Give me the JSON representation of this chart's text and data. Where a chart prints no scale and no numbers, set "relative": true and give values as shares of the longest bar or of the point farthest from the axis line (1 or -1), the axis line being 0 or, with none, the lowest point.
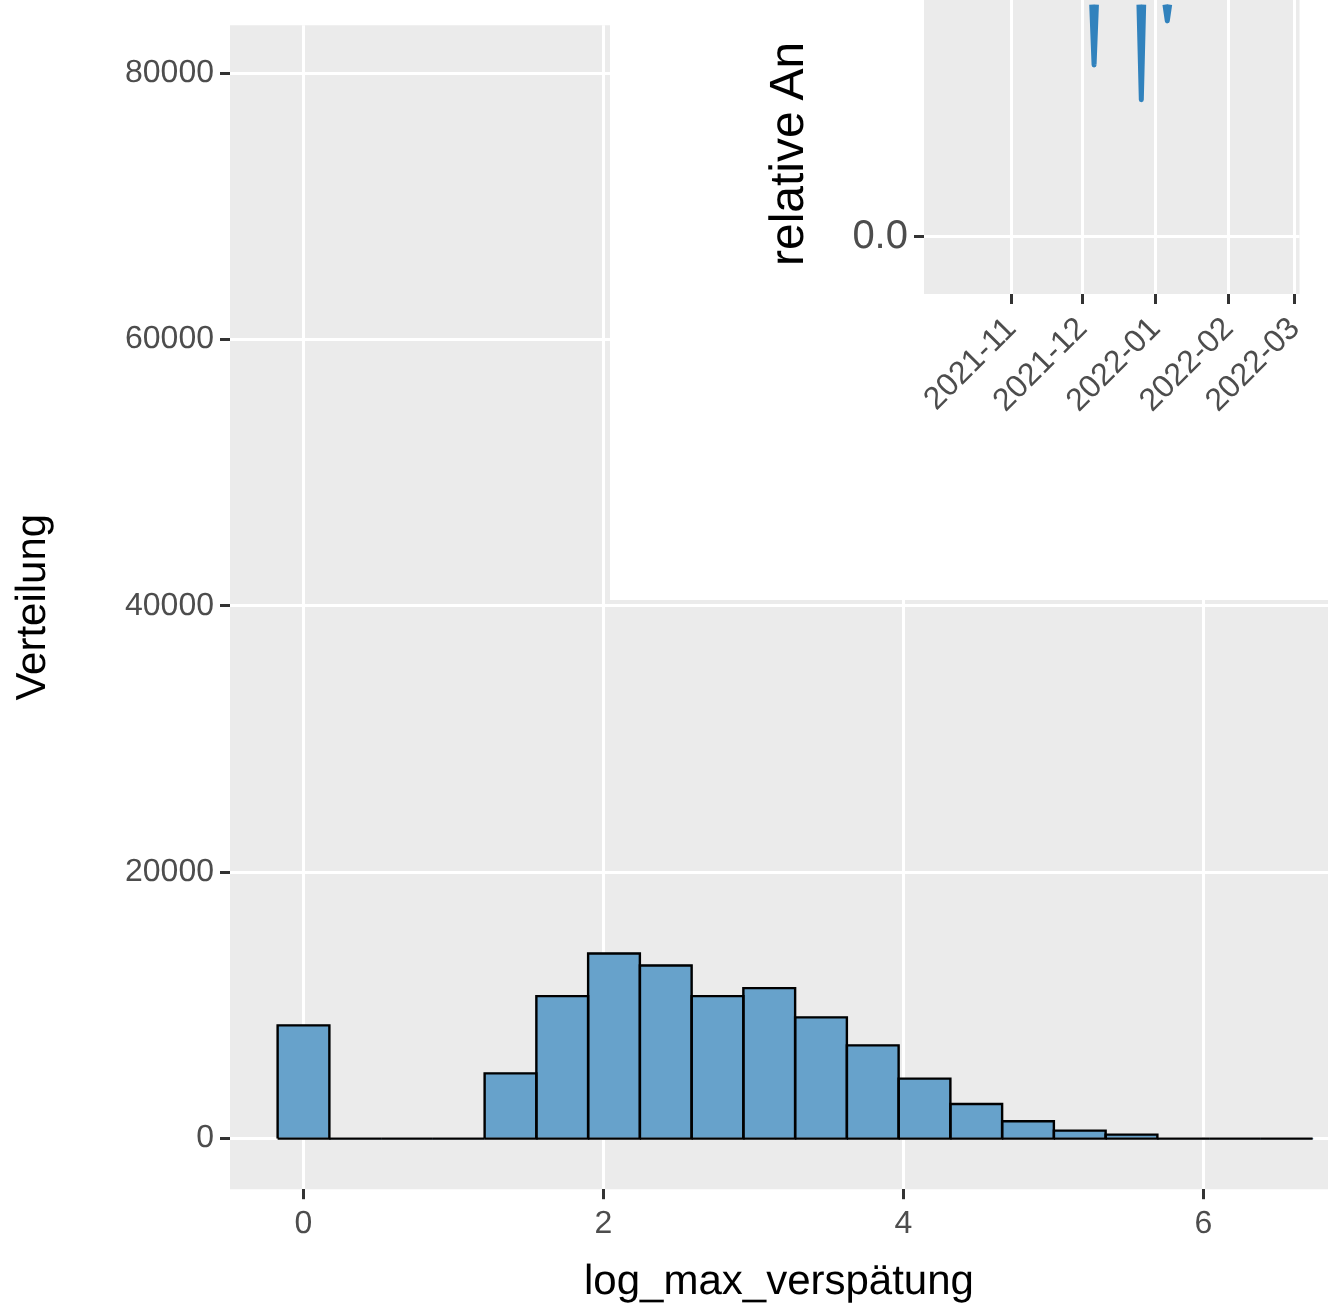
{
  "chart_data": [
    {
      "type": "histogram",
      "xlabel": "log_max_verspätung",
      "ylabel": "Verteilung",
      "color": "#67a2cb",
      "bins": [
        -0.1725,
        0.1725,
        0.5175,
        0.8625,
        1.2075,
        1.5525,
        1.8975,
        2.2425,
        2.5875,
        2.9325,
        3.2775,
        3.6225,
        3.9675,
        4.3125,
        4.6575,
        5.0025,
        5.3475,
        5.6925,
        6.0375,
        6.3825,
        6.7275
      ],
      "values": [
        8500,
        0,
        0,
        0,
        4900,
        10700,
        13900,
        13000,
        10700,
        11300,
        9100,
        7000,
        4500,
        2600,
        1300,
        600,
        300,
        0,
        0,
        0
      ],
      "xlim": [
        -0.49,
        6.83
      ],
      "ylim": [
        -3800,
        83600
      ],
      "xticks": [
        0,
        2,
        4,
        6
      ],
      "yticks": [
        0,
        20000,
        40000,
        60000,
        80000
      ],
      "grid": true
    },
    {
      "type": "line",
      "ylabel": "relative An",
      "color": "#3182bd",
      "x": [
        "2021-12-05",
        "2021-12-06",
        "2021-12-07",
        "2021-12-16",
        "2021-12-25",
        "2021-12-26",
        "2021-12-27",
        "2022-01-01",
        "2022-01-05",
        "2022-01-06",
        "2022-01-07"
      ],
      "values": [
        1,
        0.74,
        1,
        null,
        1,
        0.59,
        1,
        null,
        1,
        0.93,
        1
      ],
      "relative": true,
      "annotations": [
        "0.0"
      ],
      "xlim": [
        "2021-09-25",
        "2022-03-03"
      ],
      "xticks": [
        {
          "value": "2021-11-01",
          "label": "2021-11"
        },
        {
          "value": "2021-12-01",
          "label": "2021-12"
        },
        {
          "value": "2022-01-01",
          "label": "2022-01"
        },
        {
          "value": "2022-02-01",
          "label": "2022-02"
        },
        {
          "value": "2022-03-01",
          "label": "2022-03"
        }
      ],
      "grid": true
    }
  ]
}
